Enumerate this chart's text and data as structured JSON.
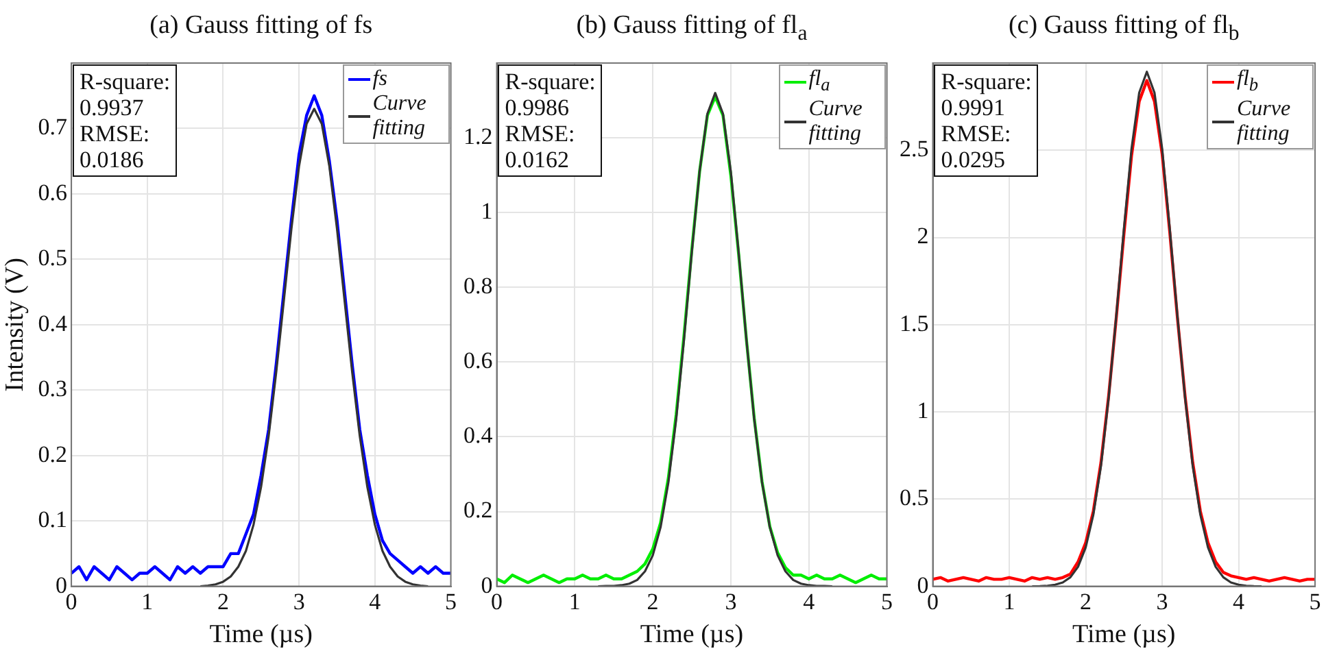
{
  "chart_data": [
    {
      "type": "line",
      "title": "(a) Gauss fitting of fs",
      "xlabel": "Time (µs)",
      "ylabel": "Intensity (V)",
      "xlim": [
        0,
        5
      ],
      "xticks": [
        0,
        1,
        2,
        3,
        4,
        5
      ],
      "ylim": [
        0,
        0.8
      ],
      "yticks": [
        0,
        0.1,
        0.2,
        0.3,
        0.4,
        0.5,
        0.6,
        0.7
      ],
      "grid": true,
      "legend": "top right",
      "annotations": [
        "R-square:",
        "0.9937",
        "RMSE:",
        "0.0186"
      ],
      "series": [
        {
          "name": "fs",
          "color": "#0000ff",
          "x": [
            0,
            0.1,
            0.2,
            0.3,
            0.4,
            0.5,
            0.6,
            0.7,
            0.8,
            0.9,
            1.0,
            1.1,
            1.2,
            1.3,
            1.4,
            1.5,
            1.6,
            1.7,
            1.8,
            1.9,
            2.0,
            2.1,
            2.2,
            2.3,
            2.4,
            2.5,
            2.6,
            2.7,
            2.8,
            2.9,
            3.0,
            3.1,
            3.2,
            3.3,
            3.4,
            3.5,
            3.6,
            3.7,
            3.8,
            3.9,
            4.0,
            4.1,
            4.2,
            4.3,
            4.4,
            4.5,
            4.6,
            4.7,
            4.8,
            4.9,
            5.0
          ],
          "values": [
            0.02,
            0.03,
            0.01,
            0.03,
            0.02,
            0.01,
            0.03,
            0.02,
            0.01,
            0.02,
            0.02,
            0.03,
            0.02,
            0.01,
            0.03,
            0.02,
            0.03,
            0.02,
            0.03,
            0.03,
            0.03,
            0.05,
            0.05,
            0.08,
            0.11,
            0.17,
            0.24,
            0.34,
            0.45,
            0.56,
            0.66,
            0.72,
            0.75,
            0.72,
            0.65,
            0.56,
            0.45,
            0.34,
            0.24,
            0.17,
            0.11,
            0.07,
            0.05,
            0.04,
            0.03,
            0.02,
            0.03,
            0.02,
            0.03,
            0.02,
            0.02
          ]
        },
        {
          "name": "Curve fitting",
          "color": "#333333",
          "x": [
            1.7,
            1.8,
            1.9,
            2.0,
            2.1,
            2.2,
            2.3,
            2.4,
            2.5,
            2.6,
            2.7,
            2.8,
            2.9,
            3.0,
            3.1,
            3.2,
            3.3,
            3.4,
            3.5,
            3.6,
            3.7,
            3.8,
            3.9,
            4.0,
            4.1,
            4.2,
            4.3,
            4.4,
            4.5,
            4.6,
            4.7
          ],
          "values": [
            0,
            0.001,
            0.003,
            0.007,
            0.015,
            0.03,
            0.054,
            0.094,
            0.152,
            0.23,
            0.328,
            0.437,
            0.547,
            0.642,
            0.707,
            0.73,
            0.707,
            0.642,
            0.547,
            0.437,
            0.328,
            0.23,
            0.152,
            0.094,
            0.054,
            0.03,
            0.015,
            0.007,
            0.003,
            0.001,
            0
          ]
        }
      ]
    },
    {
      "type": "line",
      "title": "(b) Gauss fitting of fl$_{a}$",
      "xlabel": "Time (µs)",
      "xlim": [
        0,
        5
      ],
      "xticks": [
        0,
        1,
        2,
        3,
        4,
        5
      ],
      "ylim": [
        0,
        1.4
      ],
      "yticks": [
        0,
        0.2,
        0.4,
        0.6,
        0.8,
        1,
        1.2
      ],
      "grid": true,
      "legend": "top right",
      "annotations": [
        "R-square:",
        "0.9986",
        "RMSE:",
        "0.0162"
      ],
      "series": [
        {
          "name": "fl$_{a}$",
          "color": "#00ee00",
          "x": [
            0,
            0.1,
            0.2,
            0.3,
            0.4,
            0.5,
            0.6,
            0.7,
            0.8,
            0.9,
            1.0,
            1.1,
            1.2,
            1.3,
            1.4,
            1.5,
            1.6,
            1.7,
            1.8,
            1.9,
            2.0,
            2.1,
            2.2,
            2.3,
            2.4,
            2.5,
            2.6,
            2.7,
            2.8,
            2.9,
            3.0,
            3.1,
            3.2,
            3.3,
            3.4,
            3.5,
            3.6,
            3.7,
            3.8,
            3.9,
            4.0,
            4.1,
            4.2,
            4.3,
            4.4,
            4.5,
            4.6,
            4.7,
            4.8,
            4.9,
            5.0
          ],
          "values": [
            0.02,
            0.01,
            0.03,
            0.02,
            0.01,
            0.02,
            0.03,
            0.02,
            0.01,
            0.02,
            0.02,
            0.03,
            0.02,
            0.02,
            0.03,
            0.02,
            0.02,
            0.03,
            0.04,
            0.06,
            0.1,
            0.17,
            0.29,
            0.46,
            0.67,
            0.9,
            1.11,
            1.26,
            1.31,
            1.26,
            1.1,
            0.89,
            0.66,
            0.45,
            0.28,
            0.16,
            0.09,
            0.05,
            0.03,
            0.03,
            0.02,
            0.03,
            0.02,
            0.02,
            0.03,
            0.02,
            0.01,
            0.02,
            0.03,
            0.02,
            0.02
          ]
        },
        {
          "name": "Curve fitting",
          "color": "#333333",
          "x": [
            1.3,
            1.4,
            1.5,
            1.6,
            1.7,
            1.8,
            1.9,
            2.0,
            2.1,
            2.2,
            2.3,
            2.4,
            2.5,
            2.6,
            2.7,
            2.8,
            2.9,
            3.0,
            3.1,
            3.2,
            3.3,
            3.4,
            3.5,
            3.6,
            3.7,
            3.8,
            3.9,
            4.0,
            4.1,
            4.2,
            4.3
          ],
          "values": [
            0,
            0.001,
            0.001,
            0.003,
            0.007,
            0.017,
            0.04,
            0.083,
            0.158,
            0.278,
            0.447,
            0.66,
            0.894,
            1.11,
            1.264,
            1.32,
            1.264,
            1.11,
            0.894,
            0.66,
            0.447,
            0.278,
            0.158,
            0.083,
            0.04,
            0.017,
            0.007,
            0.003,
            0.001,
            0.001,
            0
          ]
        }
      ]
    },
    {
      "type": "line",
      "title": "(c) Gauss fitting of fl$_{b}$",
      "xlabel": "Time (µs)",
      "xlim": [
        0,
        5
      ],
      "xticks": [
        0,
        1,
        2,
        3,
        4,
        5
      ],
      "ylim": [
        0,
        3
      ],
      "yticks": [
        0,
        0.5,
        1,
        1.5,
        2,
        2.5
      ],
      "grid": true,
      "legend": "top right",
      "annotations": [
        "R-square:",
        "0.9991",
        "RMSE:",
        "0.0295"
      ],
      "series": [
        {
          "name": "fl$_{b}$",
          "color": "#ff0000",
          "x": [
            0,
            0.1,
            0.2,
            0.3,
            0.4,
            0.5,
            0.6,
            0.7,
            0.8,
            0.9,
            1.0,
            1.1,
            1.2,
            1.3,
            1.4,
            1.5,
            1.6,
            1.7,
            1.8,
            1.9,
            2.0,
            2.1,
            2.2,
            2.3,
            2.4,
            2.5,
            2.6,
            2.7,
            2.8,
            2.9,
            3.0,
            3.1,
            3.2,
            3.3,
            3.4,
            3.5,
            3.6,
            3.7,
            3.8,
            3.9,
            4.0,
            4.1,
            4.2,
            4.3,
            4.4,
            4.5,
            4.6,
            4.7,
            4.8,
            4.9,
            5.0
          ],
          "values": [
            0.04,
            0.05,
            0.03,
            0.04,
            0.05,
            0.04,
            0.03,
            0.05,
            0.04,
            0.04,
            0.05,
            0.04,
            0.03,
            0.05,
            0.04,
            0.05,
            0.04,
            0.05,
            0.07,
            0.14,
            0.25,
            0.43,
            0.71,
            1.09,
            1.54,
            2.02,
            2.47,
            2.78,
            2.9,
            2.78,
            2.48,
            2.03,
            1.54,
            1.09,
            0.71,
            0.43,
            0.25,
            0.14,
            0.08,
            0.06,
            0.05,
            0.04,
            0.05,
            0.04,
            0.03,
            0.04,
            0.05,
            0.04,
            0.03,
            0.04,
            0.04
          ]
        },
        {
          "name": "Curve fitting",
          "color": "#333333",
          "x": [
            1.3,
            1.4,
            1.5,
            1.6,
            1.7,
            1.8,
            1.9,
            2.0,
            2.1,
            2.2,
            2.3,
            2.4,
            2.5,
            2.6,
            2.7,
            2.8,
            2.9,
            3.0,
            3.1,
            3.2,
            3.3,
            3.4,
            3.5,
            3.6,
            3.7,
            3.8,
            3.9,
            4.0,
            4.1,
            4.2,
            4.3
          ],
          "values": [
            0,
            0.001,
            0.003,
            0.009,
            0.022,
            0.052,
            0.112,
            0.223,
            0.41,
            0.69,
            1.08,
            1.55,
            2.05,
            2.51,
            2.83,
            2.95,
            2.83,
            2.51,
            2.05,
            1.55,
            1.08,
            0.69,
            0.41,
            0.223,
            0.112,
            0.052,
            0.022,
            0.009,
            0.003,
            0.001,
            0
          ]
        }
      ]
    }
  ]
}
